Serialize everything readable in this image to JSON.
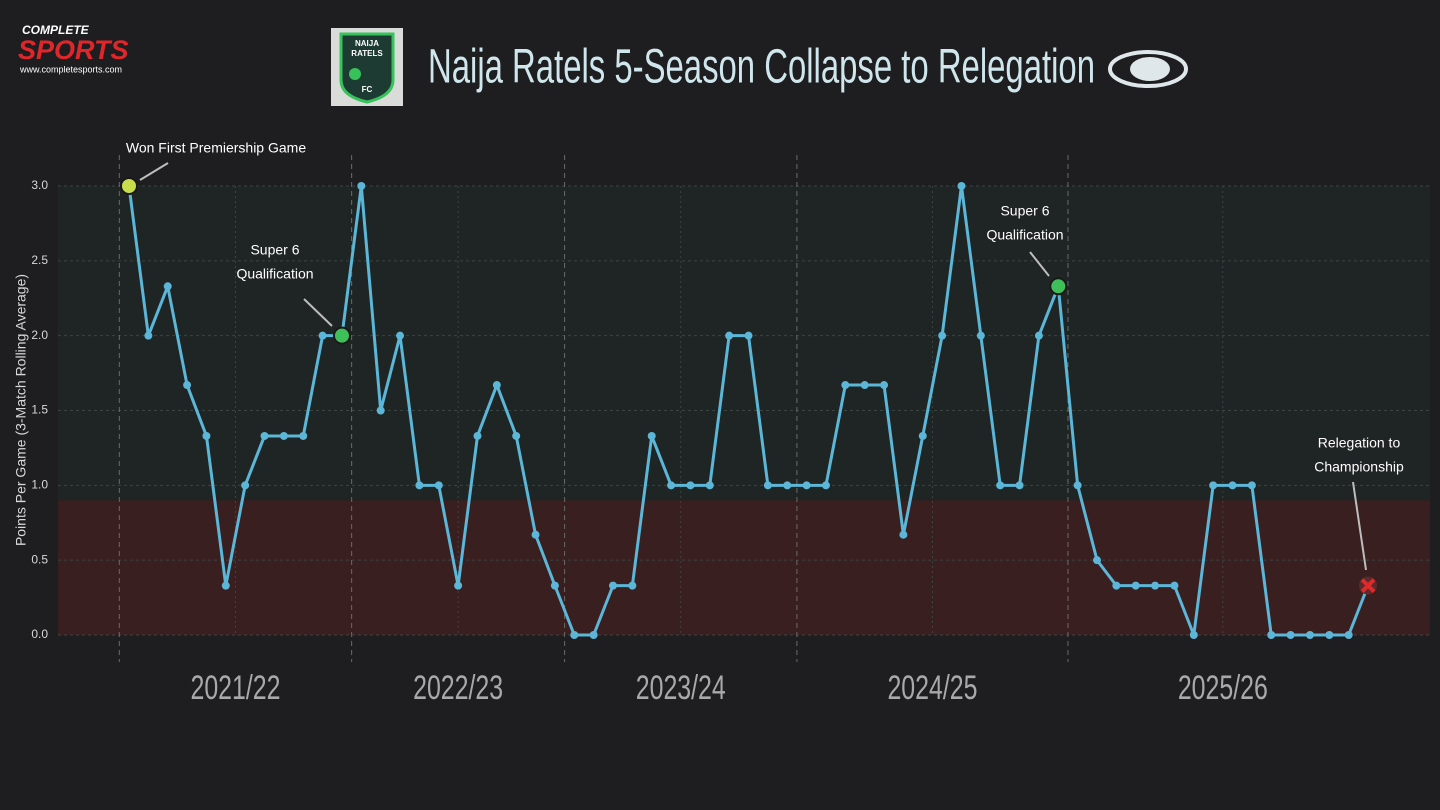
{
  "brand": {
    "top": "COMPLETE",
    "main": "SPORTS",
    "url": "www.completesports.com"
  },
  "badge": {
    "lines": [
      "NAIJA",
      "RATELS",
      "FC"
    ]
  },
  "chart_data": {
    "type": "line",
    "title": "Naija Ratels 5-Season Collapse to Relegation",
    "y_label": "Points Per Game (3-Match Rolling Average)",
    "ylim": [
      0,
      3
    ],
    "yticks": [
      {
        "value": 0,
        "label": "0.0"
      },
      {
        "value": 0.5,
        "label": "0.5"
      },
      {
        "value": 1,
        "label": "1.0"
      },
      {
        "value": 1.5,
        "label": "1.5"
      },
      {
        "value": 2,
        "label": "2.0"
      },
      {
        "value": 2.5,
        "label": "2.5"
      },
      {
        "value": 3,
        "label": "3.0"
      }
    ],
    "danger_zone_max": 0.9,
    "color": "#5bb6d8",
    "values": [
      3.0,
      2.0,
      2.33,
      1.67,
      1.33,
      0.33,
      1.0,
      1.33,
      1.33,
      1.33,
      2.0,
      2.0,
      3.0,
      1.5,
      2.0,
      1.0,
      1.0,
      0.33,
      1.33,
      1.67,
      1.33,
      0.67,
      0.33,
      0,
      0,
      0.33,
      0.33,
      1.33,
      1.0,
      1.0,
      1.0,
      2.0,
      2.0,
      1.0,
      1.0,
      1.0,
      1.0,
      1.67,
      1.67,
      1.67,
      0.67,
      1.33,
      2.0,
      3.0,
      2.0,
      1.0,
      1.0,
      2.0,
      2.33,
      1.0,
      0.5,
      0.33,
      0.33,
      0.33,
      0.33,
      0,
      1.0,
      1.0,
      1.0,
      0,
      0,
      0,
      0,
      0,
      0.33
    ],
    "seasons": [
      {
        "label": "2021/22",
        "range": [
          -0.5,
          11.5
        ]
      },
      {
        "label": "2022/23",
        "range": [
          11.5,
          22.5
        ]
      },
      {
        "label": "2023/24",
        "range": [
          22.5,
          34.5
        ]
      },
      {
        "label": "2024/25",
        "range": [
          34.5,
          48.5
        ]
      },
      {
        "label": "2025/26",
        "range": [
          48.5,
          64.5
        ]
      }
    ],
    "annotations": [
      {
        "index": 0,
        "text": [
          "Won First Premiership Game"
        ],
        "marker": "circle",
        "color": "#c9dc4c"
      },
      {
        "index": 11,
        "text": [
          "Super 6",
          "Qualification"
        ],
        "marker": "circle",
        "color": "#3fbf5a"
      },
      {
        "index": 48,
        "text": [
          "Super 6",
          "Qualification"
        ],
        "marker": "circle",
        "color": "#3fbf5a"
      },
      {
        "index": 64,
        "text": [
          "Relegation to",
          "Championship"
        ],
        "marker": "x",
        "color": "#e02a2a"
      }
    ]
  }
}
